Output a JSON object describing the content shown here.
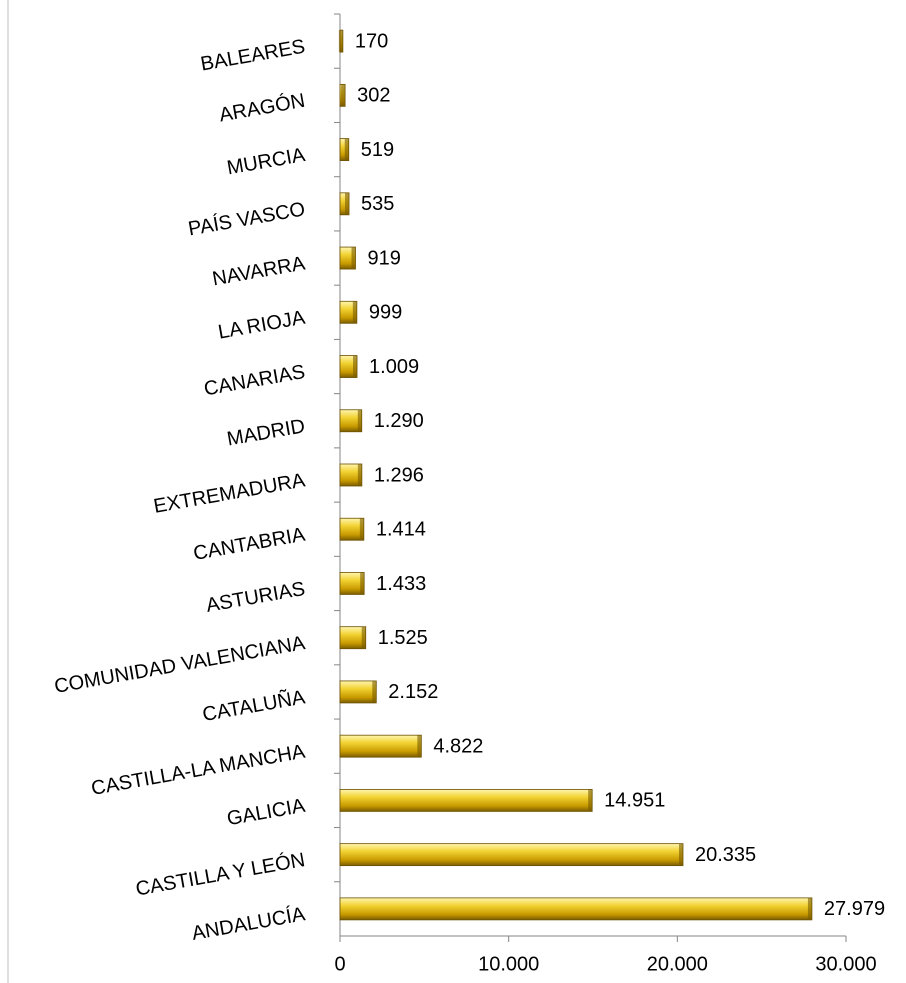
{
  "chart_data": {
    "type": "bar",
    "orientation": "horizontal",
    "categories": [
      "BALEARES",
      "ARAGÓN",
      "MURCIA",
      "PAÍS VASCO",
      "NAVARRA",
      "LA RIOJA",
      "CANARIAS",
      "MADRID",
      "EXTREMADURA",
      "CANTABRIA",
      "ASTURIAS",
      "COMUNIDAD VALENCIANA",
      "CATALUÑA",
      "CASTILLA-LA MANCHA",
      "GALICIA",
      "CASTILLA Y LEÓN",
      "ANDALUCÍA"
    ],
    "values": [
      170,
      302,
      519,
      535,
      919,
      999,
      1009,
      1290,
      1296,
      1414,
      1433,
      1525,
      2152,
      4822,
      14951,
      20335,
      27979
    ],
    "value_labels": [
      "170",
      "302",
      "519",
      "535",
      "919",
      "999",
      "1.009",
      "1.290",
      "1.296",
      "1.414",
      "1.433",
      "1.525",
      "2.152",
      "4.822",
      "14.951",
      "20.335",
      "27.979"
    ],
    "color": "#e8c020",
    "xlim": [
      0,
      30000
    ],
    "xticks": [
      0,
      {
        "value": 10000,
        "label": "10.000"
      },
      {
        "value": 20000,
        "label": "20.000"
      },
      {
        "value": 30000,
        "label": "30.000"
      }
    ]
  }
}
